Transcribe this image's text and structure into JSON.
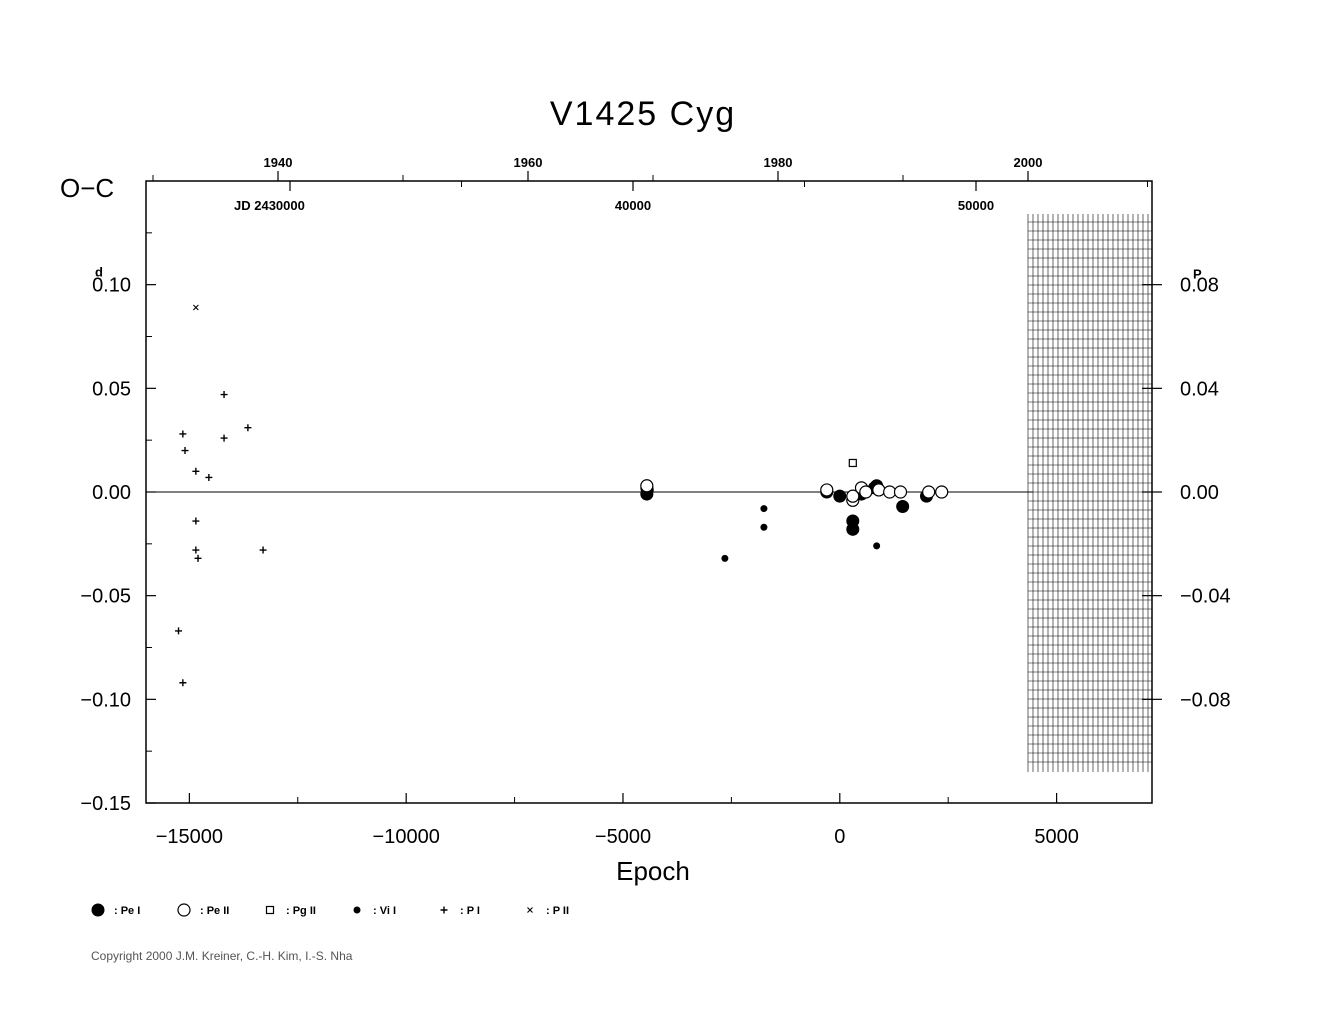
{
  "chart_data": {
    "type": "scatter",
    "title": "V1425  Cyg",
    "ylabel": "O−C",
    "xlabel": "Epoch",
    "xlim": [
      -16000,
      7200
    ],
    "ylim": [
      -0.15,
      0.15
    ],
    "grid": false,
    "zero_line": true,
    "x_ticks": [
      -15000,
      -10000,
      -5000,
      0,
      5000
    ],
    "x_tick_labels": [
      "−15000",
      "−10000",
      "−5000",
      "0",
      "5000"
    ],
    "y_ticks": [
      0.1,
      0.05,
      0.0,
      -0.05,
      -0.1,
      -0.15
    ],
    "y_tick_labels": [
      "0.10",
      "0.05",
      "0.00",
      "−0.05",
      "−0.10",
      "−0.15"
    ],
    "y_unit_superscript": "d",
    "right_axis": {
      "unit_superscript": "P",
      "ticks": [
        0.08,
        0.04,
        0.0,
        -0.04,
        -0.08
      ],
      "tick_labels": [
        "0.08",
        "0.04",
        "0.00",
        "−0.04",
        "−0.08"
      ]
    },
    "top_axis_years": {
      "ticks": [
        1940,
        1960,
        1980,
        2000
      ],
      "labels": [
        "1940",
        "1960",
        "1980",
        "2000"
      ]
    },
    "top_axis_jd": {
      "prefix_label": "JD  2430000",
      "ticks": [
        30000,
        40000,
        50000
      ],
      "labels": [
        "",
        "40000",
        "50000"
      ]
    },
    "future_region": {
      "from_epoch": 4450,
      "hatched": true
    },
    "series": [
      {
        "name": ": Pe  I",
        "marker": "filled-circle-large",
        "points": [
          [
            -4450,
            0.002
          ],
          [
            -4450,
            -0.001
          ],
          [
            -4440,
            0.001
          ],
          [
            -300,
            0.0
          ],
          [
            0,
            -0.002
          ],
          [
            300,
            -0.014
          ],
          [
            300,
            -0.018
          ],
          [
            500,
            -0.001
          ],
          [
            600,
            0.0
          ],
          [
            800,
            0.002
          ],
          [
            850,
            0.003
          ],
          [
            1450,
            -0.007
          ],
          [
            2000,
            -0.002
          ],
          [
            2350,
            0.0
          ]
        ]
      },
      {
        "name": ": Pe  II",
        "marker": "open-circle",
        "points": [
          [
            -4450,
            0.003
          ],
          [
            -300,
            0.001
          ],
          [
            300,
            -0.004
          ],
          [
            300,
            -0.002
          ],
          [
            500,
            0.002
          ],
          [
            600,
            0.0
          ],
          [
            900,
            0.001
          ],
          [
            1150,
            0.0
          ],
          [
            1400,
            0.0
          ],
          [
            2050,
            0.0
          ],
          [
            2350,
            0.0
          ]
        ]
      },
      {
        "name": ": Pg  II",
        "marker": "open-square",
        "points": [
          [
            300,
            0.014
          ]
        ]
      },
      {
        "name": ": Vi  I",
        "marker": "filled-circle-small",
        "points": [
          [
            -2650,
            -0.032
          ],
          [
            -1750,
            -0.008
          ],
          [
            -1750,
            -0.017
          ],
          [
            850,
            -0.026
          ]
        ]
      },
      {
        "name": ": P  I",
        "marker": "plus",
        "points": [
          [
            -15150,
            0.028
          ],
          [
            -15100,
            0.02
          ],
          [
            -14850,
            0.01
          ],
          [
            -14550,
            0.007
          ],
          [
            -14200,
            0.047
          ],
          [
            -14200,
            0.026
          ],
          [
            -13650,
            0.031
          ],
          [
            -13300,
            -0.028
          ],
          [
            -14850,
            -0.014
          ],
          [
            -14850,
            -0.028
          ],
          [
            -14800,
            -0.032
          ],
          [
            -15250,
            -0.067
          ],
          [
            -15150,
            -0.092
          ]
        ]
      },
      {
        "name": ": P  II",
        "marker": "cross-small",
        "points": [
          [
            -14850,
            0.089
          ]
        ]
      }
    ]
  },
  "copyright": "Copyright 2000 J.M. Kreiner, C.-H. Kim, I.-S. Nha"
}
